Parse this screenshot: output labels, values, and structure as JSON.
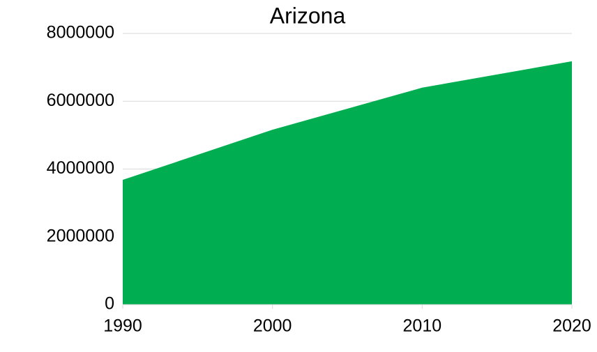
{
  "chart_data": {
    "type": "area",
    "title": "Arizona",
    "x": [
      1990,
      2000,
      2010,
      2020
    ],
    "values": [
      3680000,
      5160000,
      6400000,
      7180000
    ],
    "color": "#00ad50",
    "xlim": [
      1990,
      2020
    ],
    "xticks": [
      1990,
      2000,
      2010,
      2020
    ],
    "ylim": [
      0,
      8000000
    ],
    "yticks": [
      0,
      2000000,
      4000000,
      6000000,
      8000000
    ],
    "grid": true
  }
}
